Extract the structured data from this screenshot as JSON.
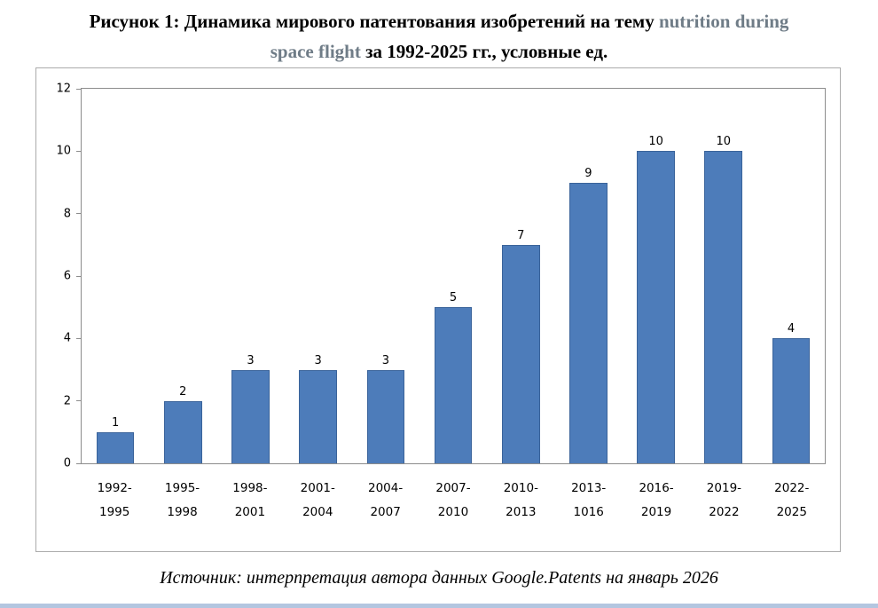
{
  "title": {
    "line1_black": "Рисунок 1: Динамика мирового патентования изобретений на тему ",
    "line1_accent": "nutrition during",
    "line2_accent": "space flight",
    "line2_black": " за 1992-2025 гг., условные ед."
  },
  "source_note": "Источник: интерпретация автора данных Google.Patents на январь 2026",
  "colors": {
    "bar_fill": "#4d7cba",
    "bar_border": "#3a639a",
    "title_accent": "#6f7c87",
    "axis_line": "#8c8c8c",
    "chart_border": "#ababab",
    "bottom_strip": "#b3c6e0"
  },
  "chart_data": {
    "type": "bar",
    "title": "Динамика мирового патентования изобретений на тему nutrition during space flight за 1992-2025 гг., условные ед.",
    "categories": [
      "1992-1995",
      "1995-1998",
      "1998-2001",
      "2001-2004",
      "2004-2007",
      "2007-2010",
      "2010-2013",
      "2013-1016",
      "2016-2019",
      "2019-2022",
      "2022-2025"
    ],
    "values": [
      1,
      2,
      3,
      3,
      3,
      5,
      7,
      9,
      10,
      10,
      4
    ],
    "ylim": [
      0,
      12
    ],
    "yticks": [
      0,
      2,
      4,
      6,
      8,
      10,
      12
    ],
    "xlabel": "",
    "ylabel": "",
    "grid": false,
    "legend": false,
    "bar_labels": true
  }
}
